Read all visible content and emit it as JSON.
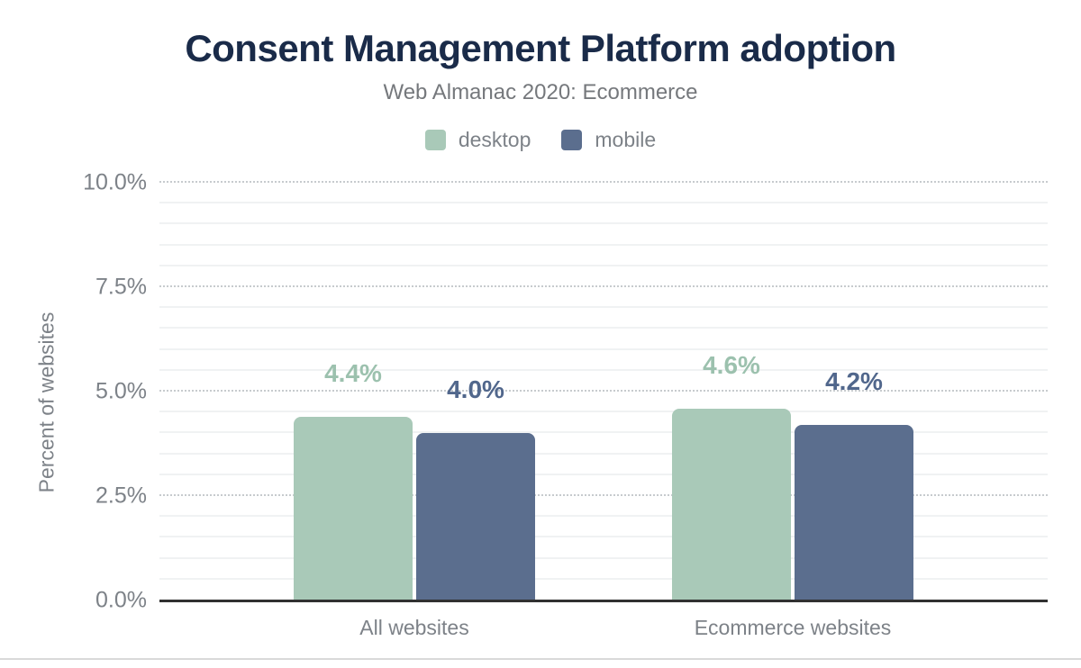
{
  "chart_data": {
    "type": "bar",
    "title": "Consent Management Platform adoption",
    "subtitle": "Web Almanac 2020: Ecommerce",
    "categories": [
      "All websites",
      "Ecommerce websites"
    ],
    "series": [
      {
        "name": "desktop",
        "color": "#a9c9b8",
        "label_color": "#9cc1ae",
        "values": [
          4.4,
          4.6
        ]
      },
      {
        "name": "mobile",
        "color": "#5b6e8e",
        "label_color": "#51678c",
        "values": [
          4.0,
          4.2
        ]
      }
    ],
    "value_labels": {
      "desktop": [
        "4.4%",
        "4.6%"
      ],
      "mobile": [
        "4.0%",
        "4.2%"
      ]
    },
    "xlabel": "",
    "ylabel": "Percent of websites",
    "ylim": [
      0,
      10
    ],
    "yticks": [
      {
        "value": 0,
        "label": "0.0%"
      },
      {
        "value": 2.5,
        "label": "2.5%"
      },
      {
        "value": 5,
        "label": "5.0%"
      },
      {
        "value": 7.5,
        "label": "7.5%"
      },
      {
        "value": 10,
        "label": "10.0%"
      }
    ],
    "grid_minor_step": 0.5,
    "grid": true,
    "legend_position": "top",
    "colors": {
      "title": "#1a2b49",
      "subtitle": "#75787c",
      "axis_text": "#7d8288",
      "axis_line": "#313131",
      "grid_major": "#c7cbce",
      "grid_minor": "#f0f2f3",
      "footer_divider": "#d9d9d9"
    }
  }
}
